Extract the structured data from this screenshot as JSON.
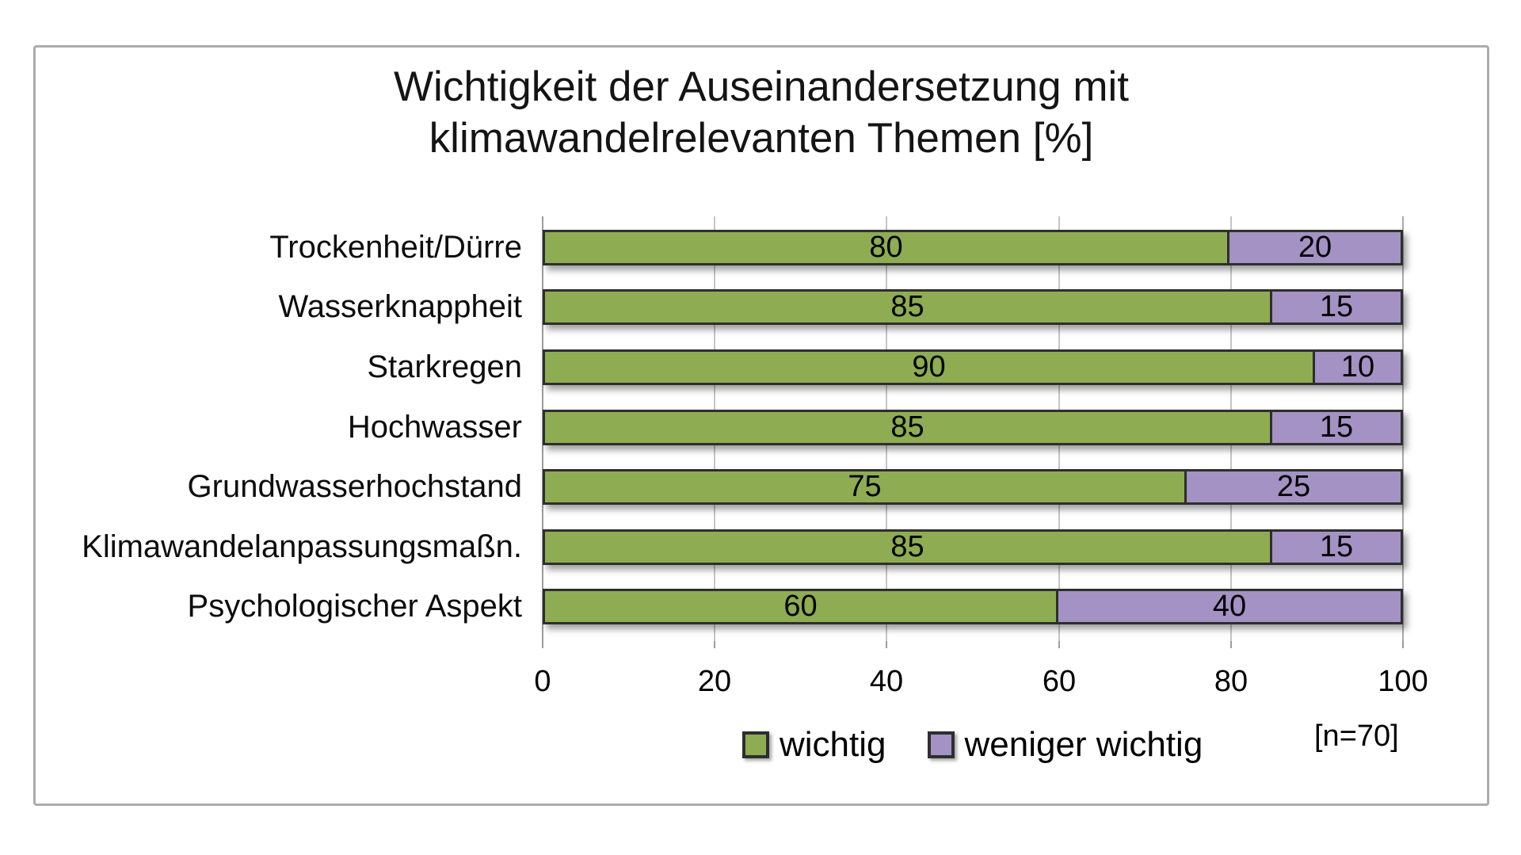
{
  "window": {
    "background": "#ffffff",
    "frame_border_color": "#acacac"
  },
  "title": {
    "line1": "Wichtigkeit der Auseinandersetzung mit",
    "line2": "klimawandelrelevanten Themen [%]"
  },
  "legend": {
    "items": [
      {
        "label": "wichtig",
        "color": "#8eac52"
      },
      {
        "label": "weniger wichtig",
        "color": "#a392c3"
      }
    ],
    "note": "[n=70]"
  },
  "colors": {
    "bar_border": "#2e2e2e",
    "gridline": "#c6c6c6",
    "axis_line": "#9c9c9c",
    "text": "#000000"
  },
  "chart_data": {
    "type": "bar",
    "orientation": "horizontal",
    "stacked": true,
    "title": "Wichtigkeit der Auseinandersetzung mit klimawandelrelevanten Themen [%]",
    "categories": [
      "Trockenheit/Dürre",
      "Wasserknappheit",
      "Starkregen",
      "Hochwasser",
      "Grundwasserhochstand",
      "Klimawandelanpassungsmaßn.",
      "Psychologischer Aspekt"
    ],
    "series": [
      {
        "name": "wichtig",
        "color": "#8eac52",
        "values": [
          80,
          85,
          90,
          85,
          75,
          85,
          60
        ]
      },
      {
        "name": "weniger wichtig",
        "color": "#a392c3",
        "values": [
          20,
          15,
          10,
          15,
          25,
          15,
          40
        ]
      }
    ],
    "value_labels_shown": true,
    "xlabel": "",
    "ylabel": "",
    "xlim": [
      0,
      100
    ],
    "x_ticks": [
      0,
      20,
      40,
      60,
      80,
      100
    ],
    "grid": true,
    "legend_position": "bottom",
    "annotation": "[n=70]"
  }
}
